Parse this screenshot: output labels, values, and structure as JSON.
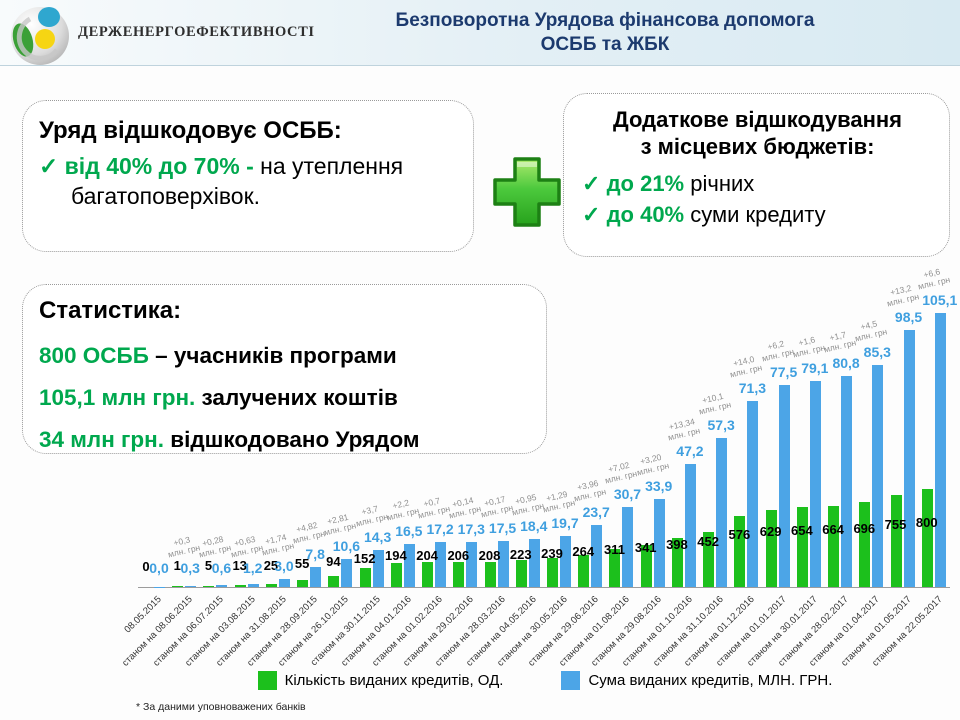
{
  "header": {
    "logo_text": "ДЕРЖЕНЕРГОЕФЕКТИВНОСТІ",
    "title_line1": "Безповоротна Урядова фінансова допомога",
    "title_line2": "ОСББ та ЖБК"
  },
  "gov_box": {
    "title": "Уряд відшкодовує ОСББ:",
    "check": "✓",
    "highlight": "від 40% до 70% - ",
    "rest": "на утеплення багатоповерхівок."
  },
  "local_box": {
    "title_line1": "Додаткове відшкодування",
    "title_line2": "з місцевих бюджетів:",
    "items": [
      {
        "check": "✓",
        "highlight": "до 21%",
        "rest": " річних"
      },
      {
        "check": "✓",
        "highlight": "до 40%",
        "rest": " суми кредиту"
      }
    ]
  },
  "stats_box": {
    "title": "Статистика:",
    "items": [
      {
        "highlight": "800 ОСББ",
        "rest": " – учасників програми"
      },
      {
        "highlight": "105,1 млн грн.",
        "rest": " залучених коштів"
      },
      {
        "highlight": "34 млн грн.",
        "rest": " відшкодовано Урядом"
      }
    ]
  },
  "chart_data": {
    "type": "bar",
    "title": "",
    "categories": [
      "08.05.2015",
      "станом на 08.06.2015",
      "станом на 06.07.2015",
      "станом на 03.08.2015",
      "станом на 31.08.2015",
      "станом на 28.09.2015",
      "станом на 26.10.2015",
      "станом на 30.11.2015",
      "станом на 04.01.2016",
      "станом на 01.02.2016",
      "станом на 29.02.2016",
      "станом на 28.03.2016",
      "станом на 04.05.2016",
      "станом на 30.05.2016",
      "станом на 29.06.2016",
      "станом на 01.08.2016",
      "станом на 29.08.2016",
      "станом на 01.10.2016",
      "станом на 31.10.2016",
      "станом на 01.12.2016",
      "станом на 01.01.2017",
      "станом на 30.01.2017",
      "станом на 28.02.2017",
      "станом на 01.04.2017",
      "станом на 01.05.2017",
      "станом на 22.05.2017"
    ],
    "series": [
      {
        "name": "Кількість виданих кредитів, ОД.",
        "color": "#1cc01c",
        "values": [
          0,
          1,
          5,
          13,
          25,
          55,
          94,
          152,
          194,
          204,
          206,
          208,
          223,
          239,
          264,
          311,
          341,
          398,
          452,
          576,
          629,
          654,
          664,
          696,
          755,
          800
        ]
      },
      {
        "name": "Сума виданих кредитів, МЛН. ГРН.",
        "color": "#4ca5e7",
        "values": [
          0.0,
          0.3,
          0.6,
          1.2,
          3.0,
          7.8,
          10.6,
          14.3,
          16.5,
          17.2,
          17.3,
          17.5,
          18.4,
          19.7,
          23.7,
          30.7,
          33.9,
          47.2,
          57.3,
          71.3,
          77.5,
          79.1,
          80.8,
          85.3,
          98.5,
          105.1
        ]
      }
    ],
    "sum_value_labels": [
      "0,0",
      "0,3",
      "0,6",
      "1,2",
      "3,0",
      "7,8",
      "10,6",
      "14,3",
      "16,5",
      "17,2",
      "17,3",
      "17,5",
      "18,4",
      "19,7",
      "23,7",
      "30,7",
      "33,9",
      "47,2",
      "57,3",
      "71,3",
      "77,5",
      "79,1",
      "80,8",
      "85,3",
      "98,5",
      "105,1"
    ],
    "annotations": [
      "",
      "+0,3",
      "+0,28",
      "+0,63",
      "+1,74",
      "+4,82",
      "+2,81",
      "+3,7",
      "+2,2",
      "+0,7",
      "+0,14",
      "+0,17",
      "+0,95",
      "+1,29",
      "+3,96",
      "+7,02",
      "+3,20",
      "+13,34",
      "+10,1",
      "+14,0",
      "+6,2",
      "+1,6",
      "+1,7",
      "+4,5",
      "+13,2",
      "+6,6"
    ],
    "annotation_unit": "млн. грн",
    "axis_max_count": 800,
    "axis_max_sum": 105.1,
    "legend_position": "bottom",
    "grid": false
  },
  "footnote": "* За даними уповноважених банків",
  "colors": {
    "title_navy": "#1c3a6e",
    "accent_green_text": "#00a84e",
    "bar_green": "#1cc01c",
    "bar_blue": "#4ca5e7",
    "sum_label_blue": "#3f9fdf"
  }
}
